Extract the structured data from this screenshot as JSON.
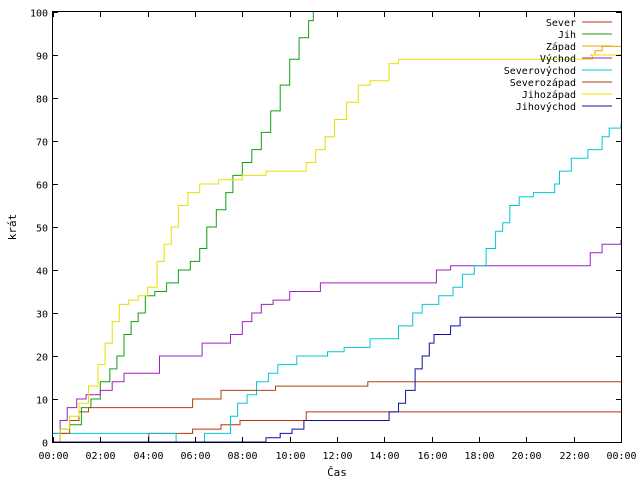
{
  "chart_data": {
    "type": "line",
    "title": "",
    "xlabel": "Čas",
    "ylabel": "krát",
    "x_ticks": [
      "00:00",
      "02:00",
      "04:00",
      "06:00",
      "08:00",
      "10:00",
      "12:00",
      "14:00",
      "16:00",
      "18:00",
      "20:00",
      "22:00",
      "00:00"
    ],
    "xlim": [
      0,
      24
    ],
    "ylim": [
      0,
      100
    ],
    "y_ticks": [
      0,
      10,
      20,
      30,
      40,
      50,
      60,
      70,
      80,
      90,
      100
    ],
    "grid": false,
    "legend_position": "top-right",
    "series": [
      {
        "name": "Sever",
        "color": "#c03010",
        "points": [
          [
            4.0,
            0
          ],
          [
            4.05,
            2
          ],
          [
            5.9,
            2
          ],
          [
            5.9,
            3
          ],
          [
            7.1,
            3
          ],
          [
            7.1,
            4
          ],
          [
            7.9,
            4
          ],
          [
            7.9,
            5
          ],
          [
            10.7,
            5
          ],
          [
            10.7,
            7
          ],
          [
            24,
            7
          ]
        ]
      },
      {
        "name": "Jih",
        "color": "#10a010",
        "points": [
          [
            0,
            0
          ],
          [
            0.3,
            3
          ],
          [
            0.7,
            4
          ],
          [
            1.2,
            8
          ],
          [
            1.6,
            10
          ],
          [
            2.0,
            14
          ],
          [
            2.4,
            17
          ],
          [
            2.7,
            20
          ],
          [
            3.0,
            25
          ],
          [
            3.3,
            28
          ],
          [
            3.6,
            30
          ],
          [
            3.9,
            34
          ],
          [
            4.3,
            35
          ],
          [
            4.8,
            37
          ],
          [
            5.3,
            40
          ],
          [
            5.8,
            42
          ],
          [
            6.2,
            45
          ],
          [
            6.5,
            50
          ],
          [
            6.9,
            54
          ],
          [
            7.3,
            58
          ],
          [
            7.6,
            62
          ],
          [
            8.0,
            65
          ],
          [
            8.4,
            68
          ],
          [
            8.8,
            72
          ],
          [
            9.2,
            77
          ],
          [
            9.6,
            83
          ],
          [
            10.0,
            89
          ],
          [
            10.4,
            94
          ],
          [
            10.8,
            98
          ],
          [
            11.0,
            100
          ]
        ]
      },
      {
        "name": "Západ",
        "color": "#e8a000",
        "points": [
          [
            22.7,
            90
          ],
          [
            22.9,
            91
          ],
          [
            23.2,
            92
          ],
          [
            24,
            92
          ]
        ]
      },
      {
        "name": "Východ",
        "color": "#a020c0",
        "points": [
          [
            0,
            2
          ],
          [
            0.3,
            5
          ],
          [
            0.6,
            8
          ],
          [
            1.0,
            10
          ],
          [
            1.4,
            11
          ],
          [
            2.0,
            12
          ],
          [
            2.5,
            14
          ],
          [
            3.0,
            16
          ],
          [
            4.3,
            16
          ],
          [
            4.5,
            20
          ],
          [
            6.0,
            20
          ],
          [
            6.3,
            23
          ],
          [
            7.5,
            25
          ],
          [
            8.0,
            28
          ],
          [
            8.4,
            30
          ],
          [
            8.8,
            32
          ],
          [
            9.3,
            33
          ],
          [
            10.0,
            35
          ],
          [
            11.0,
            35
          ],
          [
            11.3,
            37
          ],
          [
            16.0,
            37
          ],
          [
            16.2,
            40
          ],
          [
            16.8,
            41
          ],
          [
            18.0,
            41
          ],
          [
            22.5,
            41
          ],
          [
            22.7,
            44
          ],
          [
            23.2,
            46
          ],
          [
            24,
            47
          ]
        ]
      },
      {
        "name": "Severovýchod",
        "color": "#00c8d8",
        "points": [
          [
            0,
            2
          ],
          [
            5.2,
            2
          ],
          [
            5.2,
            0
          ],
          [
            6.3,
            0
          ],
          [
            6.4,
            2
          ],
          [
            7.3,
            2
          ],
          [
            7.5,
            6
          ],
          [
            7.8,
            9
          ],
          [
            8.2,
            11
          ],
          [
            8.6,
            14
          ],
          [
            9.1,
            16
          ],
          [
            9.5,
            18
          ],
          [
            10.3,
            20
          ],
          [
            11.6,
            21
          ],
          [
            12.3,
            22
          ],
          [
            13.4,
            24
          ],
          [
            14.6,
            27
          ],
          [
            15.2,
            30
          ],
          [
            15.6,
            32
          ],
          [
            16.3,
            34
          ],
          [
            16.9,
            36
          ],
          [
            17.3,
            39
          ],
          [
            17.8,
            41
          ],
          [
            18.3,
            45
          ],
          [
            18.7,
            49
          ],
          [
            19.0,
            51
          ],
          [
            19.3,
            55
          ],
          [
            19.7,
            57
          ],
          [
            20.3,
            58
          ],
          [
            21.2,
            60
          ],
          [
            21.4,
            63
          ],
          [
            21.9,
            66
          ],
          [
            22.6,
            68
          ],
          [
            23.2,
            71
          ],
          [
            23.5,
            73
          ],
          [
            24,
            74
          ]
        ]
      },
      {
        "name": "Severozápad",
        "color": "#b04010",
        "points": [
          [
            0,
            0
          ],
          [
            0.3,
            2
          ],
          [
            0.7,
            5
          ],
          [
            1.1,
            7
          ],
          [
            1.5,
            8
          ],
          [
            5.9,
            8
          ],
          [
            5.9,
            10
          ],
          [
            7.0,
            10
          ],
          [
            7.1,
            12
          ],
          [
            9.3,
            12
          ],
          [
            9.4,
            13
          ],
          [
            13.2,
            13
          ],
          [
            13.3,
            14
          ],
          [
            24,
            14
          ]
        ]
      },
      {
        "name": "Jihozápad",
        "color": "#e8e000",
        "points": [
          [
            0,
            0
          ],
          [
            0.3,
            3
          ],
          [
            0.7,
            6
          ],
          [
            1.1,
            9
          ],
          [
            1.5,
            13
          ],
          [
            1.9,
            18
          ],
          [
            2.2,
            23
          ],
          [
            2.5,
            28
          ],
          [
            2.8,
            32
          ],
          [
            3.2,
            33
          ],
          [
            3.6,
            34
          ],
          [
            4.0,
            36
          ],
          [
            4.4,
            42
          ],
          [
            4.7,
            46
          ],
          [
            5.0,
            50
          ],
          [
            5.3,
            55
          ],
          [
            5.7,
            58
          ],
          [
            6.2,
            60
          ],
          [
            7.0,
            61
          ],
          [
            8.0,
            62
          ],
          [
            9.0,
            63
          ],
          [
            10.5,
            63
          ],
          [
            10.7,
            65
          ],
          [
            11.1,
            68
          ],
          [
            11.5,
            71
          ],
          [
            11.9,
            75
          ],
          [
            12.4,
            79
          ],
          [
            12.9,
            83
          ],
          [
            13.4,
            84
          ],
          [
            14.2,
            88
          ],
          [
            14.6,
            89
          ],
          [
            22.4,
            89
          ],
          [
            22.8,
            90
          ],
          [
            24,
            90
          ]
        ]
      },
      {
        "name": "Jihovýchod",
        "color": "#1010a0",
        "points": [
          [
            0,
            0
          ],
          [
            8.9,
            0
          ],
          [
            9.0,
            1
          ],
          [
            9.6,
            2
          ],
          [
            10.1,
            3
          ],
          [
            10.6,
            5
          ],
          [
            11.4,
            5
          ],
          [
            12.0,
            5
          ],
          [
            13.4,
            5
          ],
          [
            14.2,
            7
          ],
          [
            14.6,
            9
          ],
          [
            14.9,
            12
          ],
          [
            15.3,
            17
          ],
          [
            15.6,
            20
          ],
          [
            15.9,
            23
          ],
          [
            16.1,
            25
          ],
          [
            16.8,
            27
          ],
          [
            17.2,
            29
          ],
          [
            24,
            29
          ]
        ]
      }
    ]
  }
}
